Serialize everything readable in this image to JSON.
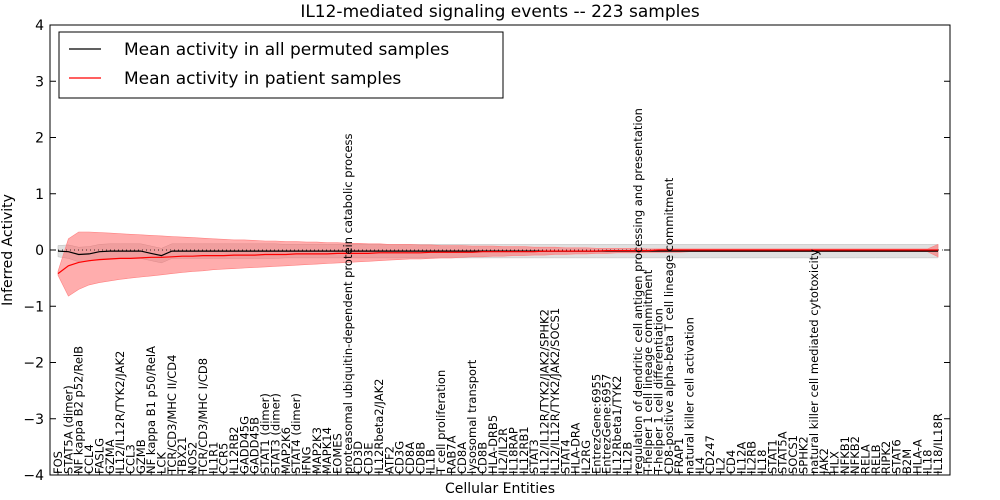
{
  "chart_data": {
    "type": "line",
    "title": "IL12-mediated signaling events -- 223 samples",
    "xlabel": "Cellular Entities",
    "ylabel": "Inferred Activity",
    "ylim": [
      -4,
      4
    ],
    "yticks": [
      -4,
      -3,
      -2,
      -1,
      0,
      1,
      2,
      3,
      4
    ],
    "grid": false,
    "legend_position": "top-left",
    "categories": [
      "FOS",
      "STAT5A (dimer)",
      "NF kappa B2 p52/RelB",
      "CCL4",
      "FASLG",
      "GZMA",
      "IL12/IL12R/TYK2/JAK2",
      "CCL3",
      "GZMB",
      "NF kappa B1 p50/RelA",
      "LCK",
      "TCR/CD3/MHC II/CD4",
      "TBX21",
      "NOS2",
      "TCR/CD3/MHC I/CD8",
      "IL1R1",
      "CCR5",
      "IL12RB2",
      "GADD45G",
      "GADD45B",
      "STAT1 (dimer)",
      "STAT3 (dimer)",
      "MAP2K6",
      "STAT4 (dimer)",
      "IFNG",
      "MAP2K3",
      "MAPK14",
      "EOMES",
      "proteasomal ubiquitin-dependent protein catabolic process",
      "CD3D",
      "CD3E",
      "IL12Rbeta2/JAK2",
      "ATF2",
      "CD3G",
      "CD8A",
      "CD8B",
      "IL1B",
      "T cell proliferation",
      "RAB7A",
      "CD8A",
      "lysosomal transport",
      "CD8B",
      "HLA-DRB5",
      "IL2/IL2R",
      "IL18RAP",
      "IL12RB1",
      "STAT3",
      "IL12/IL12R/TYK2/JAK2/SPHK2",
      "IL12/IL12R/TYK2/JAK2/SOCS1",
      "STAT4",
      "HLA-DRA",
      "IL2RG",
      "EntrezGene:6955",
      "EntrezGene:6957",
      "IL12Rbeta1/TYK2",
      "IL12B",
      "regulation of dendritic cell antigen processing and presentation",
      "T-helper 1 cell lineage commitment",
      "T-helper 1 cell differentiation",
      "CD8-positive alpha-beta T cell lineage commitment",
      "FRAP1",
      "natural killer cell activation",
      "IL4",
      "CD247",
      "IL2",
      "CD4",
      "IL12A",
      "IL2RB",
      "IL18",
      "STAT1",
      "STAT5A",
      "SOCS1",
      "SPHK2",
      "natural killer cell mediated cytotoxicity",
      "JAK2",
      "HLX",
      "NFKB1",
      "NFKB2",
      "RELA",
      "RELB",
      "RIPK2",
      "STAT6",
      "B2M",
      "HLA-A",
      "IL18",
      "IL18/IL18R"
    ],
    "series": [
      {
        "name": "Mean activity in all permuted samples",
        "color": "#000000",
        "values": [
          -0.02,
          -0.03,
          -0.08,
          -0.07,
          -0.03,
          -0.02,
          -0.02,
          -0.02,
          -0.02,
          -0.06,
          -0.1,
          -0.02,
          -0.02,
          -0.02,
          -0.02,
          -0.02,
          -0.02,
          -0.02,
          -0.02,
          -0.02,
          -0.02,
          -0.02,
          -0.02,
          -0.02,
          -0.02,
          -0.02,
          -0.02,
          -0.02,
          -0.02,
          -0.02,
          -0.02,
          -0.02,
          -0.02,
          -0.02,
          -0.02,
          -0.02,
          -0.02,
          -0.02,
          -0.02,
          -0.02,
          -0.02,
          -0.02,
          -0.02,
          -0.02,
          -0.02,
          -0.02,
          -0.02,
          -0.02,
          -0.02,
          -0.02,
          -0.02,
          -0.02,
          -0.02,
          -0.02,
          -0.02,
          -0.02,
          -0.02,
          -0.02,
          -0.02,
          -0.02,
          -0.02,
          -0.02,
          -0.02,
          -0.02,
          -0.02,
          -0.02,
          -0.02,
          -0.02,
          -0.02,
          -0.02,
          -0.02,
          -0.02,
          -0.02,
          -0.02,
          -0.02,
          -0.02,
          -0.02,
          -0.02,
          -0.02,
          -0.02,
          -0.02,
          -0.02,
          -0.02,
          -0.02,
          -0.02,
          -0.02
        ],
        "band": [
          0.1,
          0.12,
          0.13,
          0.13,
          0.13,
          0.13,
          0.13,
          0.13,
          0.13,
          0.13,
          0.13,
          0.13,
          0.13,
          0.13,
          0.13,
          0.13,
          0.13,
          0.13,
          0.13,
          0.13,
          0.13,
          0.13,
          0.12,
          0.12,
          0.12,
          0.12,
          0.12,
          0.12,
          0.12,
          0.12,
          0.12,
          0.12,
          0.12,
          0.12,
          0.12,
          0.12,
          0.12,
          0.12,
          0.12,
          0.12,
          0.12,
          0.12,
          0.12,
          0.12,
          0.12,
          0.12,
          0.12,
          0.12,
          0.12,
          0.12,
          0.12,
          0.12,
          0.12,
          0.12,
          0.12,
          0.12,
          0.12,
          0.12,
          0.12,
          0.12,
          0.12,
          0.12,
          0.12,
          0.12,
          0.12,
          0.12,
          0.12,
          0.12,
          0.12,
          0.12,
          0.12,
          0.12,
          0.12,
          0.12,
          0.12,
          0.12,
          0.12,
          0.12,
          0.12,
          0.12,
          0.12,
          0.12,
          0.12,
          0.12,
          0.12,
          0.12
        ]
      },
      {
        "name": "Mean activity in patient samples",
        "color": "#ff0000",
        "values": [
          -0.42,
          -0.28,
          -0.22,
          -0.19,
          -0.17,
          -0.16,
          -0.15,
          -0.15,
          -0.14,
          -0.13,
          -0.13,
          -0.12,
          -0.11,
          -0.11,
          -0.1,
          -0.1,
          -0.1,
          -0.09,
          -0.09,
          -0.09,
          -0.08,
          -0.08,
          -0.08,
          -0.07,
          -0.07,
          -0.07,
          -0.07,
          -0.06,
          -0.06,
          -0.06,
          -0.06,
          -0.05,
          -0.05,
          -0.05,
          -0.05,
          -0.05,
          -0.04,
          -0.04,
          -0.04,
          -0.04,
          -0.04,
          -0.03,
          -0.03,
          -0.03,
          -0.03,
          -0.03,
          -0.03,
          -0.02,
          -0.02,
          -0.02,
          -0.02,
          -0.02,
          -0.02,
          -0.01,
          -0.01,
          -0.01,
          -0.01,
          -0.01,
          0.0,
          0.0,
          0.0,
          0.0,
          0.0,
          0.0,
          0.0,
          0.0,
          0.0,
          0.0,
          0.0,
          0.0,
          0.0,
          0.0,
          0.0,
          0.0,
          0.0,
          0.0,
          0.0,
          0.0,
          0.0,
          0.0,
          0.0,
          0.0,
          0.0,
          0.0,
          0.0,
          0.0
        ],
        "band_lower": [
          -0.45,
          -0.82,
          -0.7,
          -0.62,
          -0.58,
          -0.55,
          -0.52,
          -0.5,
          -0.48,
          -0.46,
          -0.44,
          -0.42,
          -0.4,
          -0.38,
          -0.37,
          -0.35,
          -0.34,
          -0.33,
          -0.32,
          -0.31,
          -0.3,
          -0.29,
          -0.28,
          -0.27,
          -0.26,
          -0.25,
          -0.24,
          -0.23,
          -0.22,
          -0.21,
          -0.2,
          -0.19,
          -0.18,
          -0.17,
          -0.16,
          -0.16,
          -0.15,
          -0.14,
          -0.14,
          -0.13,
          -0.12,
          -0.12,
          -0.11,
          -0.11,
          -0.1,
          -0.1,
          -0.09,
          -0.09,
          -0.08,
          -0.08,
          -0.07,
          -0.07,
          -0.06,
          -0.06,
          -0.05,
          -0.05,
          -0.05,
          -0.04,
          -0.04,
          -0.04,
          -0.04,
          -0.03,
          -0.03,
          -0.03,
          -0.03,
          -0.03,
          -0.03,
          -0.03,
          -0.03,
          -0.03,
          -0.03,
          -0.03,
          -0.03,
          -0.03,
          -0.03,
          -0.03,
          -0.03,
          -0.03,
          -0.03,
          -0.03,
          -0.03,
          -0.03,
          -0.03,
          -0.03,
          -0.03,
          -0.12
        ],
        "band_upper": [
          -0.38,
          0.2,
          0.32,
          0.32,
          0.31,
          0.3,
          0.29,
          0.28,
          0.27,
          0.26,
          0.25,
          0.24,
          0.23,
          0.22,
          0.21,
          0.2,
          0.19,
          0.18,
          0.18,
          0.17,
          0.16,
          0.16,
          0.15,
          0.15,
          0.14,
          0.14,
          0.13,
          0.13,
          0.12,
          0.12,
          0.11,
          0.11,
          0.1,
          0.1,
          0.1,
          0.09,
          0.09,
          0.08,
          0.08,
          0.08,
          0.07,
          0.07,
          0.07,
          0.06,
          0.06,
          0.06,
          0.05,
          0.05,
          0.05,
          0.04,
          0.04,
          0.04,
          0.03,
          0.03,
          0.03,
          0.03,
          0.03,
          0.02,
          0.02,
          0.02,
          0.02,
          0.02,
          0.02,
          0.02,
          0.02,
          0.02,
          0.02,
          0.02,
          0.02,
          0.02,
          0.02,
          0.02,
          0.02,
          0.02,
          0.02,
          0.02,
          0.02,
          0.02,
          0.02,
          0.02,
          0.02,
          0.02,
          0.02,
          0.02,
          0.02,
          0.1
        ]
      }
    ]
  }
}
